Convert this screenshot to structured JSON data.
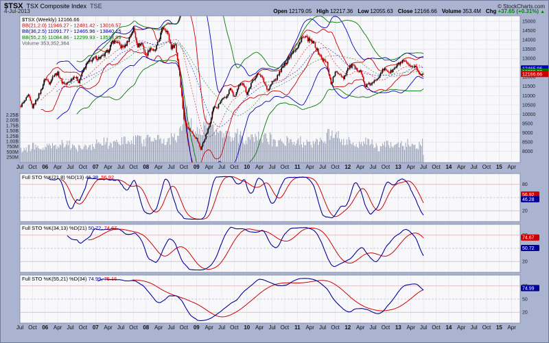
{
  "header": {
    "symbol": "$TSX",
    "description": "TSX Composite Index",
    "exchange": "TSE",
    "date": "4-Jul-2013",
    "copyright": "© StockCharts.com",
    "quote": {
      "open_label": "Open",
      "open": "12179.05",
      "high_label": "High",
      "high": "12217.36",
      "low_label": "Low",
      "low": "12055.63",
      "close_label": "Close",
      "close": "12166.66",
      "volume_label": "Volume",
      "volume": "353.4M",
      "chg_label": "Chg",
      "chg": "+37.65 (+0.31%)",
      "chg_arrow": "▲",
      "chg_color": "#008800"
    }
  },
  "main_chart": {
    "legend": [
      {
        "text": "$TSX (Weekly) 12166.66",
        "color": "#000000"
      },
      {
        "text": "BB(21,2.0) 11946.27 - 12481.42 - 13016.57",
        "color": "#cc0000"
      },
      {
        "text": "BB(36,2.5) 11091.77 - 12465.96 - 13840.15",
        "color": "#0000bb"
      },
      {
        "text": "BB(55,2.5) 11084.86 - 12299.93 - 13514.99",
        "color": "#007700"
      },
      {
        "text": "Volume 353,352,364",
        "color": "#555566"
      }
    ],
    "axis_tags": [
      {
        "value": 12465.96,
        "color": "#0000bb"
      },
      {
        "value": 12299.93,
        "color": "#007700"
      },
      {
        "value": 12166.66,
        "color": "#cc0000"
      }
    ]
  },
  "chart_data": [
    {
      "type": "candlestick",
      "title": "$TSX TSX Composite Index (TSE) Weekly",
      "last_close": 12166.66,
      "ylim": [
        7400,
        15300
      ],
      "y_ticks": [
        8000,
        8500,
        9000,
        9500,
        10000,
        10500,
        11000,
        11500,
        12000,
        12500,
        13000,
        13500,
        14000,
        14500,
        15000
      ],
      "months_total": 119,
      "x_start": "Jul-2005",
      "x_end_of_data": "Jul-2013",
      "x_axis_extends_to": "Apr-2015",
      "x_tick_step_months": 3,
      "x_tick_labels": [
        "Jul",
        "Oct",
        "06",
        "Apr",
        "Jul",
        "Oct",
        "07",
        "Apr",
        "Jul",
        "Oct",
        "08",
        "Apr",
        "Jul",
        "Oct",
        "09",
        "Apr",
        "Jul",
        "Oct",
        "10",
        "Apr",
        "Jul",
        "Oct",
        "11",
        "Apr",
        "Jul",
        "Oct",
        "12",
        "Apr",
        "Jul",
        "Oct",
        "13",
        "Apr",
        "Jul",
        "Oct",
        "14",
        "Apr",
        "Jul",
        "Oct",
        "15",
        "Apr"
      ],
      "monthly_close": [
        10400,
        10650,
        11000,
        10380,
        10820,
        11270,
        11950,
        11690,
        12110,
        12200,
        11745,
        11610,
        11830,
        12070,
        11760,
        12340,
        12750,
        12910,
        13030,
        13045,
        13165,
        13415,
        13910,
        13905,
        13625,
        13660,
        14100,
        14625,
        13690,
        13830,
        13155,
        13580,
        13350,
        13935,
        14715,
        14465,
        13590,
        13770,
        12120,
        9760,
        9270,
        8990,
        8695,
        8120,
        8720,
        9325,
        10370,
        10375,
        10785,
        10870,
        11395,
        10910,
        11445,
        11745,
        11095,
        11630,
        12040,
        12210,
        11765,
        11295,
        11715,
        11915,
        12370,
        12675,
        13055,
        13445,
        13550,
        14135,
        14115,
        13945,
        13800,
        13300,
        12945,
        12770,
        11625,
        12250,
        12205,
        11955,
        12450,
        12645,
        12390,
        12395,
        11515,
        11600,
        11665,
        11950,
        12320,
        12420,
        12240,
        12435,
        12685,
        12820,
        12750,
        12455,
        12650,
        12130,
        12167
      ],
      "monthly_volume_millions": [
        620,
        650,
        700,
        760,
        690,
        640,
        780,
        800,
        820,
        790,
        860,
        840,
        700,
        680,
        720,
        800,
        820,
        760,
        880,
        900,
        950,
        870,
        920,
        980,
        1000,
        1100,
        950,
        1050,
        1150,
        900,
        1200,
        1100,
        1250,
        1050,
        1000,
        1100,
        1300,
        1200,
        1500,
        2200,
        1800,
        1400,
        1500,
        1600,
        1900,
        1700,
        1500,
        1600,
        1300,
        1200,
        1250,
        1300,
        1200,
        1100,
        1150,
        1100,
        1200,
        1250,
        1400,
        1150,
        950,
        900,
        1000,
        1050,
        1100,
        1000,
        1000,
        950,
        1050,
        900,
        950,
        1000,
        900,
        1300,
        1250,
        1200,
        1000,
        950,
        1000,
        950,
        900,
        850,
        950,
        900,
        750,
        700,
        800,
        850,
        800,
        750,
        850,
        800,
        900,
        850,
        800,
        900,
        353
      ],
      "volume_ticks": [
        {
          "v": 250,
          "label": "250M"
        },
        {
          "v": 500,
          "label": "500M"
        },
        {
          "v": 750,
          "label": "750M"
        },
        {
          "v": 1000,
          "label": "1.00B"
        },
        {
          "v": 1250,
          "label": "1.25B"
        },
        {
          "v": 1500,
          "label": "1.50B"
        },
        {
          "v": 1750,
          "label": "1.75B"
        },
        {
          "v": 2000,
          "label": "2.00B"
        },
        {
          "v": 2250,
          "label": "2.25B"
        }
      ],
      "volume_scale_max": 2400,
      "bollinger_overlays": [
        {
          "period": 21,
          "mult": 2.0,
          "color": "#cc0000"
        },
        {
          "period": 36,
          "mult": 2.5,
          "color": "#0000bb"
        },
        {
          "period": 55,
          "mult": 2.5,
          "color": "#007700"
        }
      ],
      "up_color": "#000000",
      "down_color": "#cc0000",
      "volume_color": "#8a93ad"
    },
    {
      "type": "line",
      "name": "stochastic",
      "label": "Full STO %K(21,8) %D(13)",
      "lookback": 21,
      "k_smooth": 8,
      "d_period": 13,
      "last_k": 46.28,
      "last_d": 56.92,
      "y_ticks": [
        20,
        50,
        80
      ],
      "k_color": "#000099",
      "d_color": "#cc0000"
    },
    {
      "type": "line",
      "name": "stochastic",
      "label": "Full STO %K(34,13) %D(21)",
      "lookback": 34,
      "k_smooth": 13,
      "d_period": 21,
      "last_k": 50.72,
      "last_d": 74.67,
      "y_ticks": [
        20,
        50,
        80
      ],
      "k_color": "#000099",
      "d_color": "#cc0000"
    },
    {
      "type": "line",
      "name": "stochastic",
      "label": "Full STO %K(55,21) %D(34)",
      "lookback": 55,
      "k_smooth": 21,
      "d_period": 34,
      "last_k": 74.99,
      "last_d": 75.16,
      "y_ticks": [
        20,
        50,
        80
      ],
      "k_color": "#000099",
      "d_color": "#cc0000"
    }
  ]
}
